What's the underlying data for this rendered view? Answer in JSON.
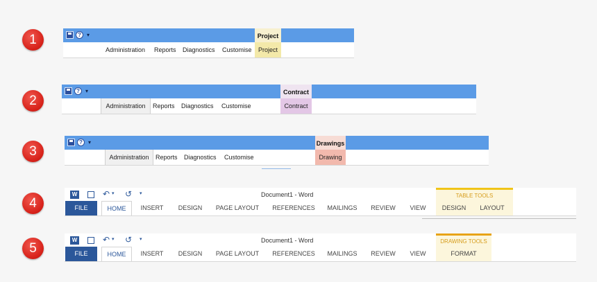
{
  "steps": [
    "1",
    "2",
    "3",
    "4",
    "5"
  ],
  "ribbon1": {
    "tabs": [
      "Administration",
      "Reports",
      "Diagnostics",
      "Customise"
    ],
    "context_header": "Project",
    "context_tab": "Project",
    "context_color": "#f3e9a9"
  },
  "ribbon2": {
    "tabs": [
      "Administration",
      "Reports",
      "Diagnostics",
      "Customise"
    ],
    "context_header": "Contract",
    "context_tab": "Contract",
    "context_color": "#e3c7e6"
  },
  "ribbon3": {
    "tabs": [
      "Administration",
      "Reports",
      "Diagnostics",
      "Customise"
    ],
    "context_header": "Drawings",
    "context_tab": "Drawing",
    "context_color": "#f2b9ad"
  },
  "word1": {
    "window_title": "Document1 - Word",
    "app_icon": "W",
    "file_tab": "FILE",
    "tabs": [
      "HOME",
      "INSERT",
      "DESIGN",
      "PAGE LAYOUT",
      "REFERENCES",
      "MAILINGS",
      "REVIEW",
      "VIEW"
    ],
    "context_header": "TABLE TOOLS",
    "context_tabs": [
      "DESIGN",
      "LAYOUT"
    ]
  },
  "word2": {
    "window_title": "Document1 - Word",
    "app_icon": "W",
    "file_tab": "FILE",
    "tabs": [
      "HOME",
      "INSERT",
      "DESIGN",
      "PAGE LAYOUT",
      "REFERENCES",
      "MAILINGS",
      "REVIEW",
      "VIEW"
    ],
    "context_header": "DRAWING TOOLS",
    "context_tabs": [
      "FORMAT"
    ]
  },
  "icons": {
    "qat_save": "save-icon",
    "qat_help": "help-icon",
    "qat_customize": "customize-dropdown-icon",
    "help_glyph": "?",
    "dropdown_glyph": "▾",
    "undo_glyph": "↶",
    "redo_glyph": "↺",
    "small_dropdown_glyph": "▾"
  },
  "colors": {
    "ribbon_blue": "#5b9be6",
    "step_red": "#d8231b",
    "word_blue": "#2b579a",
    "table_tools_accent": "#f0c419",
    "drawing_tools_accent": "#e8a317"
  }
}
